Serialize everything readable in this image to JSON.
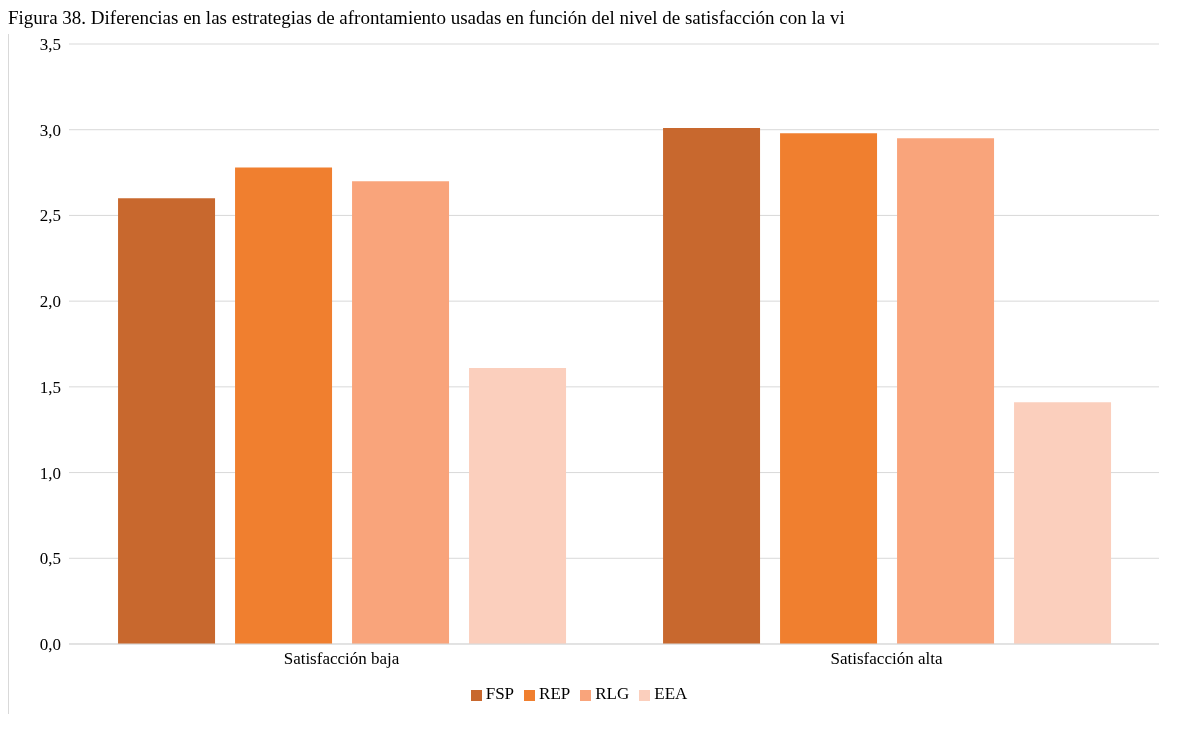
{
  "chart_data": {
    "type": "bar",
    "title": "Figura 38. Diferencias en las estrategias de afrontamiento usadas en función del nivel de satisfacción con la vi",
    "categories": [
      "Satisfacción baja",
      "Satisfacción alta"
    ],
    "series": [
      {
        "name": "FSP",
        "color": "#c8682e",
        "values": [
          2.6,
          3.01
        ]
      },
      {
        "name": "REP",
        "color": "#f07f2f",
        "values": [
          2.78,
          2.98
        ]
      },
      {
        "name": "RLG",
        "color": "#f9a47b",
        "values": [
          2.7,
          2.95
        ]
      },
      {
        "name": "EEA",
        "color": "#fbcfbd",
        "values": [
          1.61,
          1.41
        ]
      }
    ],
    "ylim": [
      0,
      3.5
    ],
    "yticks": [
      {
        "value": 0,
        "label": "0,0"
      },
      {
        "value": 0.5,
        "label": "0,5"
      },
      {
        "value": 1,
        "label": "1,0"
      },
      {
        "value": 1.5,
        "label": "1,5"
      },
      {
        "value": 2,
        "label": "2,0"
      },
      {
        "value": 2.5,
        "label": "2,5"
      },
      {
        "value": 3,
        "label": "3,0"
      },
      {
        "value": 3.5,
        "label": "3,5"
      }
    ],
    "grid": "y",
    "legend": "bottom"
  }
}
